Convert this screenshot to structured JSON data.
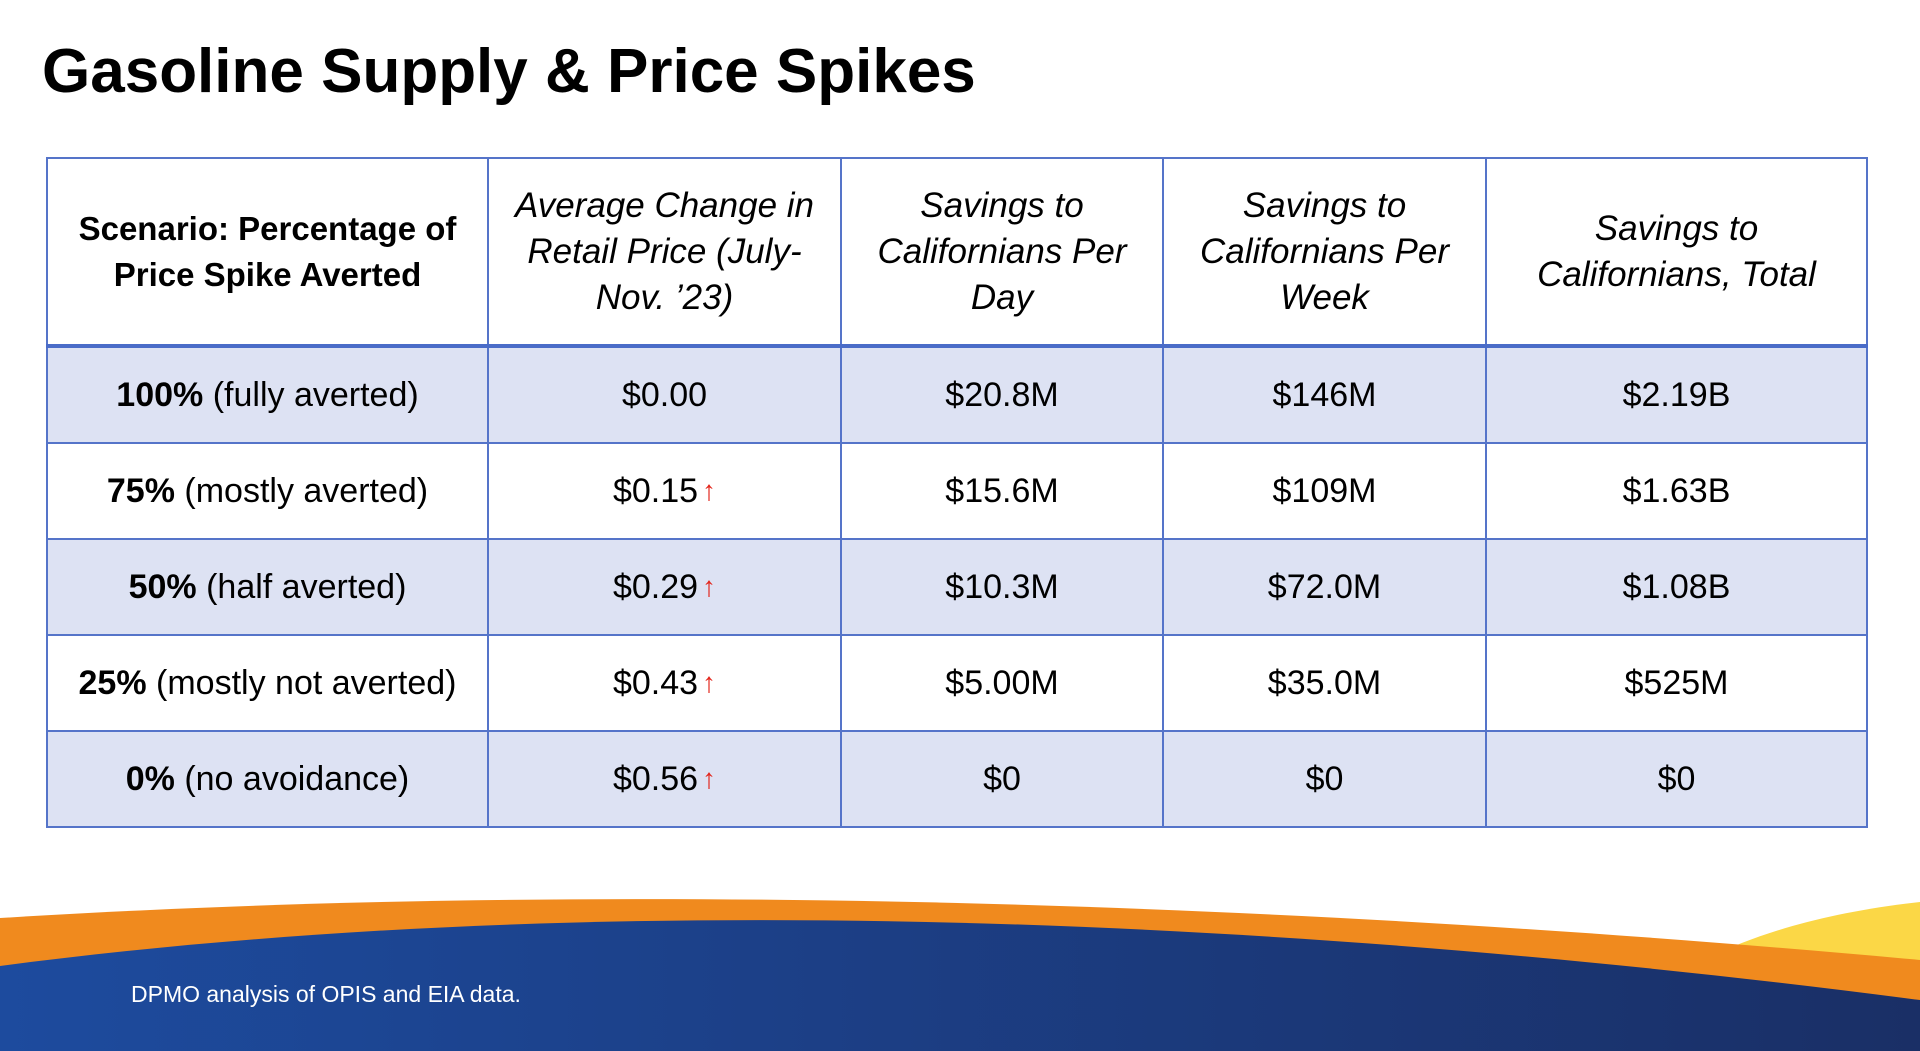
{
  "slide": {
    "title": "Gasoline Supply & Price Spikes",
    "source_note": "DPMO analysis of OPIS and EIA data."
  },
  "table": {
    "headers": [
      "Scenario: Percentage of Price Spike Averted",
      "Average Change in Retail Price (July-Nov. ’23)",
      "Savings to Californians Per Day",
      "Savings to Californians Per Week",
      "Savings to Californians, Total"
    ],
    "rows": [
      {
        "pct": "100%",
        "desc": "(fully averted)",
        "change": "$0.00",
        "up": false,
        "per_day": "$20.8M",
        "per_week": "$146M",
        "total": "$2.19B"
      },
      {
        "pct": "75%",
        "desc": "(mostly averted)",
        "change": "$0.15",
        "up": true,
        "per_day": "$15.6M",
        "per_week": "$109M",
        "total": "$1.63B"
      },
      {
        "pct": "50%",
        "desc": "(half averted)",
        "change": "$0.29",
        "up": true,
        "per_day": "$10.3M",
        "per_week": "$72.0M",
        "total": "$1.08B"
      },
      {
        "pct": "25%",
        "desc": "(mostly not averted)",
        "change": "$0.43",
        "up": true,
        "per_day": "$5.00M",
        "per_week": "$35.0M",
        "total": "$525M"
      },
      {
        "pct": "0%",
        "desc": "(no avoidance)",
        "change": "$0.56",
        "up": true,
        "per_day": "$0",
        "per_week": "$0",
        "total": "$0"
      }
    ],
    "up_arrow_glyph": "↑"
  },
  "colors": {
    "border": "#5574c9",
    "row_shade": "#dde2f3",
    "arrow": "#e3251b",
    "footer_blue": "#1b3d86",
    "footer_orange": "#f08a1e",
    "footer_yellow": "#fbd746"
  }
}
